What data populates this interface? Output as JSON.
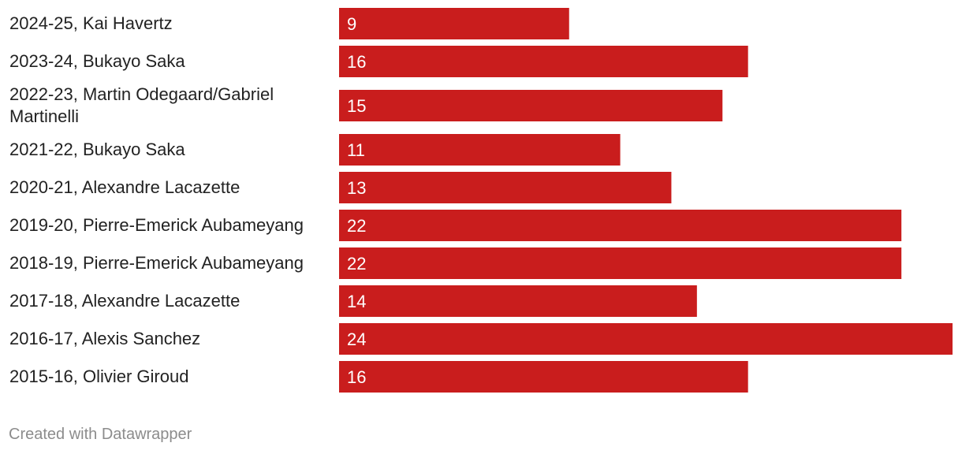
{
  "chart_data": {
    "type": "bar",
    "orientation": "horizontal",
    "categories": [
      "2024-25, Kai Havertz",
      "2023-24, Bukayo Saka",
      "2022-23, Martin Odegaard/Gabriel Martinelli",
      "2021-22, Bukayo Saka",
      "2020-21, Alexandre Lacazette",
      "2019-20, Pierre-Emerick Aubameyang",
      "2018-19, Pierre-Emerick Aubameyang",
      "2017-18, Alexandre Lacazette",
      "2016-17, Alexis Sanchez",
      "2015-16, Olivier Giroud"
    ],
    "values": [
      9,
      16,
      15,
      11,
      13,
      22,
      22,
      14,
      24,
      16
    ],
    "xlim": [
      0,
      24
    ],
    "grid": false,
    "bar_color": "#c91d1d",
    "value_label_color": "#ffffff"
  },
  "footer": {
    "credit": "Created with Datawrapper"
  }
}
